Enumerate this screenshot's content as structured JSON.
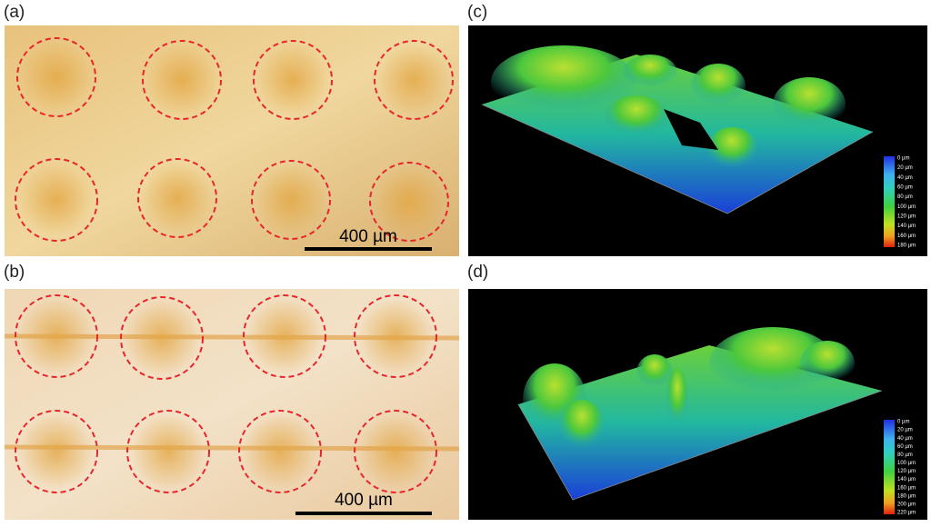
{
  "panels": [
    {
      "label": "(a)",
      "scale_bar": "400 µm"
    },
    {
      "label": "(b)",
      "scale_bar": "400 µm"
    },
    {
      "label": "(c)",
      "colorbar": [
        "0 µm",
        "20 µm",
        "40 µm",
        "60 µm",
        "80 µm",
        "100 µm",
        "120 µm",
        "140 µm",
        "160 µm",
        "180 µm"
      ]
    },
    {
      "label": "(d)",
      "colorbar": [
        "0 µm",
        "20 µm",
        "40 µm",
        "60 µm",
        "80 µm",
        "100 µm",
        "120 µm",
        "140 µm",
        "160 µm",
        "180 µm",
        "200 µm",
        "220 µm"
      ]
    }
  ]
}
